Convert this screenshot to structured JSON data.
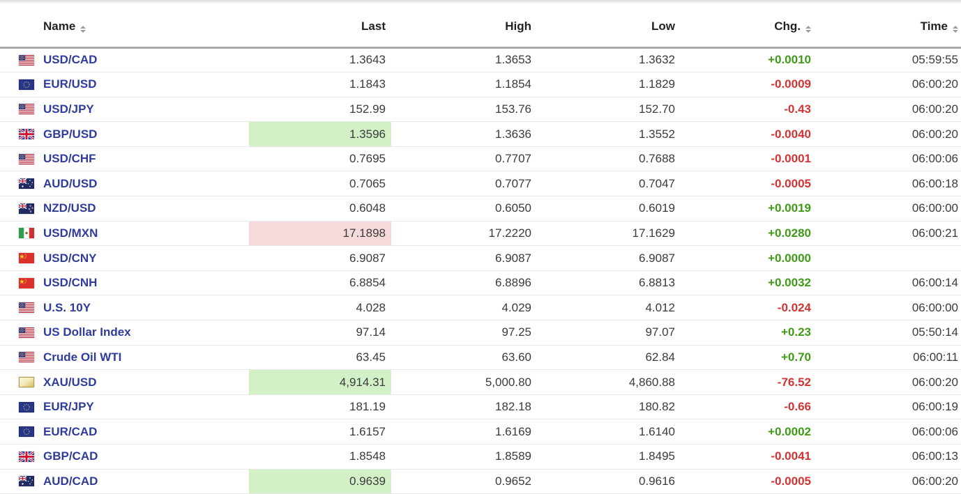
{
  "colors": {
    "positive_change": "#3f9a16",
    "negative_change": "#d13434",
    "flash_up_bg": "#d3f1c7",
    "flash_down_bg": "#f6dadb",
    "instrument_link": "#2f3b9d",
    "header_text": "#222222",
    "value_text": "#3b3b3b"
  },
  "table": {
    "columns": [
      {
        "key": "name",
        "label": "Name",
        "sortable": true
      },
      {
        "key": "last",
        "label": "Last",
        "sortable": false
      },
      {
        "key": "high",
        "label": "High",
        "sortable": false
      },
      {
        "key": "low",
        "label": "Low",
        "sortable": false
      },
      {
        "key": "chg",
        "label": "Chg.",
        "sortable": true
      },
      {
        "key": "time",
        "label": "Time",
        "sortable": true
      }
    ],
    "rows": [
      {
        "flag": "us-flag-icon",
        "name": "USD/CAD",
        "last": "1.3643",
        "high": "1.3653",
        "low": "1.3632",
        "chg": "+0.0010",
        "chg_dir": "up",
        "time": "05:59:55",
        "last_flash": null
      },
      {
        "flag": "eu-flag-icon",
        "name": "EUR/USD",
        "last": "1.1843",
        "high": "1.1854",
        "low": "1.1829",
        "chg": "-0.0009",
        "chg_dir": "down",
        "time": "06:00:20",
        "last_flash": null
      },
      {
        "flag": "us-flag-icon",
        "name": "USD/JPY",
        "last": "152.99",
        "high": "153.76",
        "low": "152.70",
        "chg": "-0.43",
        "chg_dir": "down",
        "time": "06:00:20",
        "last_flash": null
      },
      {
        "flag": "uk-flag-icon",
        "name": "GBP/USD",
        "last": "1.3596",
        "high": "1.3636",
        "low": "1.3552",
        "chg": "-0.0040",
        "chg_dir": "down",
        "time": "06:00:20",
        "last_flash": "up"
      },
      {
        "flag": "us-flag-icon",
        "name": "USD/CHF",
        "last": "0.7695",
        "high": "0.7707",
        "low": "0.7688",
        "chg": "-0.0001",
        "chg_dir": "down",
        "time": "06:00:06",
        "last_flash": null
      },
      {
        "flag": "au-flag-icon",
        "name": "AUD/USD",
        "last": "0.7065",
        "high": "0.7077",
        "low": "0.7047",
        "chg": "-0.0005",
        "chg_dir": "down",
        "time": "06:00:18",
        "last_flash": null
      },
      {
        "flag": "nz-flag-icon",
        "name": "NZD/USD",
        "last": "0.6048",
        "high": "0.6050",
        "low": "0.6019",
        "chg": "+0.0019",
        "chg_dir": "up",
        "time": "06:00:00",
        "last_flash": null
      },
      {
        "flag": "mx-flag-icon",
        "name": "USD/MXN",
        "last": "17.1898",
        "high": "17.2220",
        "low": "17.1629",
        "chg": "+0.0280",
        "chg_dir": "up",
        "time": "06:00:21",
        "last_flash": "down"
      },
      {
        "flag": "cn-flag-icon",
        "name": "USD/CNY",
        "last": "6.9087",
        "high": "6.9087",
        "low": "6.9087",
        "chg": "+0.0000",
        "chg_dir": "up",
        "time": "",
        "last_flash": null
      },
      {
        "flag": "cn-flag-icon",
        "name": "USD/CNH",
        "last": "6.8854",
        "high": "6.8896",
        "low": "6.8813",
        "chg": "+0.0032",
        "chg_dir": "up",
        "time": "06:00:14",
        "last_flash": null
      },
      {
        "flag": "us-flag-icon",
        "name": "U.S. 10Y",
        "last": "4.028",
        "high": "4.029",
        "low": "4.012",
        "chg": "-0.024",
        "chg_dir": "down",
        "time": "06:00:00",
        "last_flash": null
      },
      {
        "flag": "us-flag-icon",
        "name": "US Dollar Index",
        "last": "97.14",
        "high": "97.25",
        "low": "97.07",
        "chg": "+0.23",
        "chg_dir": "up",
        "time": "05:50:14",
        "last_flash": null
      },
      {
        "flag": "us-flag-icon",
        "name": "Crude Oil WTI",
        "last": "63.45",
        "high": "63.60",
        "low": "62.84",
        "chg": "+0.70",
        "chg_dir": "up",
        "time": "06:00:11",
        "last_flash": null
      },
      {
        "flag": "gold-bar-icon",
        "name": "XAU/USD",
        "last": "4,914.31",
        "high": "5,000.80",
        "low": "4,860.88",
        "chg": "-76.52",
        "chg_dir": "down",
        "time": "06:00:20",
        "last_flash": "up"
      },
      {
        "flag": "eu-flag-icon",
        "name": "EUR/JPY",
        "last": "181.19",
        "high": "182.18",
        "low": "180.82",
        "chg": "-0.66",
        "chg_dir": "down",
        "time": "06:00:19",
        "last_flash": null
      },
      {
        "flag": "eu-flag-icon",
        "name": "EUR/CAD",
        "last": "1.6157",
        "high": "1.6169",
        "low": "1.6140",
        "chg": "+0.0002",
        "chg_dir": "up",
        "time": "06:00:06",
        "last_flash": null
      },
      {
        "flag": "uk-flag-icon",
        "name": "GBP/CAD",
        "last": "1.8548",
        "high": "1.8589",
        "low": "1.8495",
        "chg": "-0.0041",
        "chg_dir": "down",
        "time": "06:00:13",
        "last_flash": null
      },
      {
        "flag": "au-flag-icon",
        "name": "AUD/CAD",
        "last": "0.9639",
        "high": "0.9652",
        "low": "0.9616",
        "chg": "-0.0005",
        "chg_dir": "down",
        "time": "06:00:20",
        "last_flash": "up"
      }
    ]
  }
}
